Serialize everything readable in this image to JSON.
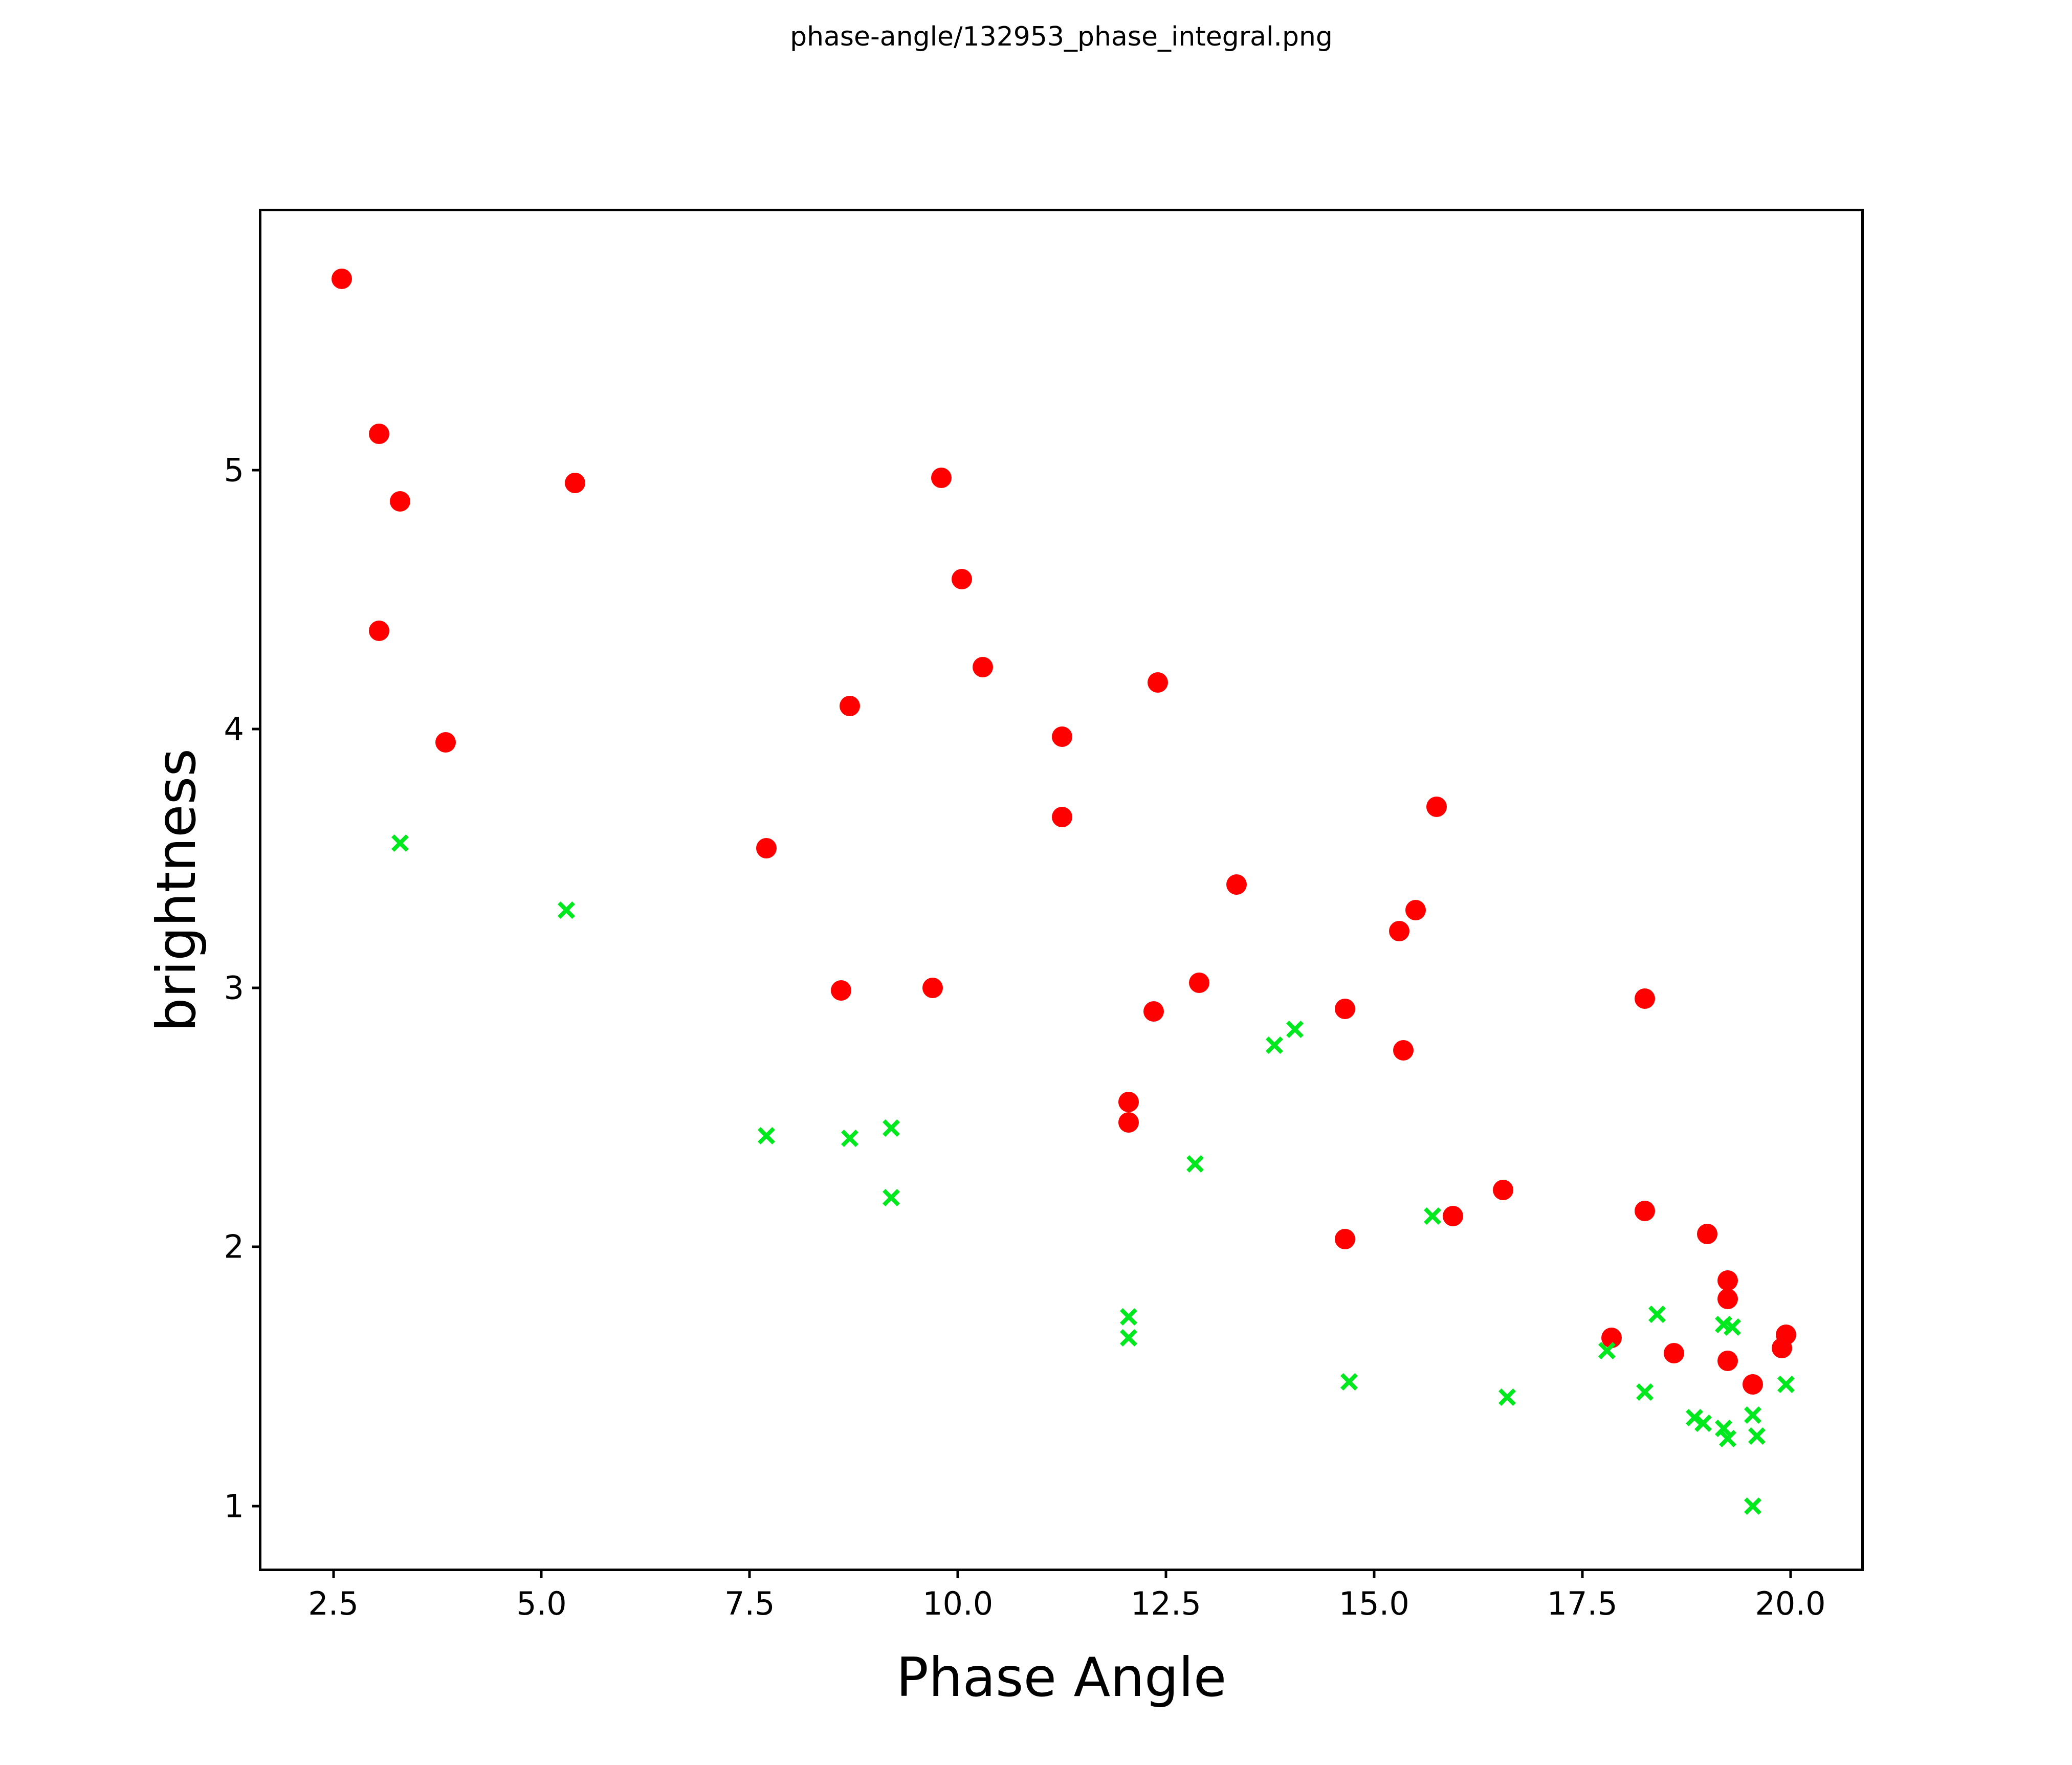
{
  "window": {
    "title": "phase-angle/132953_phase_integral.png"
  },
  "chart_data": {
    "type": "scatter",
    "title": "phase-angle/132953_phase_integral.png",
    "xlabel": "Phase Angle",
    "ylabel": "brightness",
    "xlim": [
      1.636,
      20.851
    ],
    "ylim": [
      0.758,
      6.0
    ],
    "grid": false,
    "legend_position": "none",
    "axis_color": "#000000",
    "background_color": "#ffffff",
    "x_ticks": [
      2.5,
      5.0,
      7.5,
      10.0,
      12.5,
      15.0,
      17.5,
      20.0
    ],
    "x_tick_labels": [
      "2.5",
      "5.0",
      "7.5",
      "10.0",
      "12.5",
      "15.0",
      "17.5",
      "20.0"
    ],
    "y_ticks": [
      1,
      2,
      3,
      4,
      5
    ],
    "y_tick_labels": [
      "1",
      "2",
      "3",
      "4",
      "5"
    ],
    "series": [
      {
        "name": "red-filled-circles",
        "marker": "circle",
        "color": "#ff0000",
        "points": [
          [
            2.6,
            5.74
          ],
          [
            3.05,
            5.14
          ],
          [
            3.3,
            4.88
          ],
          [
            3.05,
            4.38
          ],
          [
            3.85,
            3.95
          ],
          [
            5.4,
            4.95
          ],
          [
            7.7,
            3.54
          ],
          [
            8.7,
            4.09
          ],
          [
            8.6,
            2.99
          ],
          [
            9.7,
            3.0
          ],
          [
            9.8,
            4.97
          ],
          [
            10.05,
            4.58
          ],
          [
            10.3,
            4.24
          ],
          [
            11.25,
            3.97
          ],
          [
            11.25,
            3.66
          ],
          [
            12.4,
            4.18
          ],
          [
            12.05,
            2.56
          ],
          [
            12.05,
            2.48
          ],
          [
            12.35,
            2.91
          ],
          [
            12.9,
            3.02
          ],
          [
            13.35,
            3.4
          ],
          [
            14.65,
            2.92
          ],
          [
            14.65,
            2.03
          ],
          [
            15.3,
            3.22
          ],
          [
            15.5,
            3.3
          ],
          [
            15.35,
            2.76
          ],
          [
            15.75,
            3.7
          ],
          [
            15.95,
            2.12
          ],
          [
            16.55,
            2.22
          ],
          [
            17.85,
            1.65
          ],
          [
            18.25,
            2.96
          ],
          [
            18.25,
            2.14
          ],
          [
            18.6,
            1.59
          ],
          [
            19.0,
            2.05
          ],
          [
            19.25,
            1.87
          ],
          [
            19.25,
            1.8
          ],
          [
            19.25,
            1.56
          ],
          [
            19.55,
            1.47
          ],
          [
            19.9,
            1.61
          ],
          [
            19.95,
            1.66
          ]
        ]
      },
      {
        "name": "green-x-markers",
        "marker": "x",
        "color": "#00e81e",
        "points": [
          [
            3.3,
            3.56
          ],
          [
            5.3,
            3.3
          ],
          [
            7.7,
            2.43
          ],
          [
            8.7,
            2.42
          ],
          [
            9.2,
            2.46
          ],
          [
            9.2,
            2.19
          ],
          [
            12.05,
            1.73
          ],
          [
            12.05,
            1.65
          ],
          [
            12.85,
            2.32
          ],
          [
            13.8,
            2.78
          ],
          [
            14.05,
            2.84
          ],
          [
            14.7,
            1.48
          ],
          [
            15.7,
            2.12
          ],
          [
            16.6,
            1.42
          ],
          [
            17.8,
            1.6
          ],
          [
            18.4,
            1.74
          ],
          [
            18.25,
            1.44
          ],
          [
            18.85,
            1.34
          ],
          [
            18.95,
            1.32
          ],
          [
            19.2,
            1.7
          ],
          [
            19.3,
            1.69
          ],
          [
            19.2,
            1.3
          ],
          [
            19.25,
            1.26
          ],
          [
            19.55,
            1.35
          ],
          [
            19.6,
            1.27
          ],
          [
            19.95,
            1.47
          ],
          [
            19.55,
            1.0
          ]
        ]
      }
    ]
  }
}
